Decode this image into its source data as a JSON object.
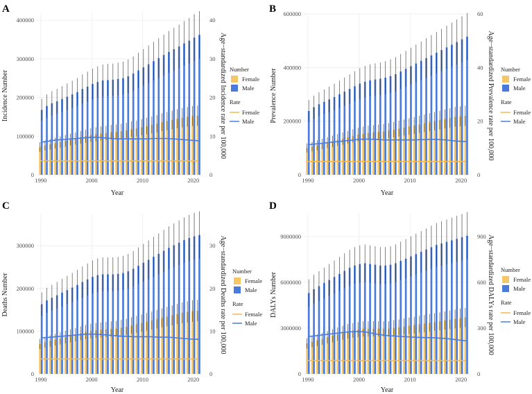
{
  "colors": {
    "female_bar": "#f6c767",
    "male_bar": "#4a7bdc",
    "female_rate": "#f2b950",
    "male_rate": "#4a7bdc",
    "error_bar": "#1f1f1f",
    "grid": "#ececec"
  },
  "legend": {
    "number_title": "Number",
    "rate_title": "Rate",
    "female": "Female",
    "male": "Male"
  },
  "chart_data": [
    {
      "type": "bar",
      "panel": "A",
      "xlabel": "Year",
      "ylabel": "Incidence Number",
      "y2label": "Age−standardized Incidence rate per 100,000",
      "x": [
        1990,
        1991,
        1992,
        1993,
        1994,
        1995,
        1996,
        1997,
        1998,
        1999,
        2000,
        2001,
        2002,
        2003,
        2004,
        2005,
        2006,
        2007,
        2008,
        2009,
        2010,
        2011,
        2012,
        2013,
        2014,
        2015,
        2016,
        2017,
        2018,
        2019,
        2020,
        2021
      ],
      "ylim": [
        0,
        420000
      ],
      "yticks": [
        0,
        100000,
        200000,
        300000,
        400000
      ],
      "y2lim": [
        0,
        42
      ],
      "y2ticks": [
        0,
        10,
        20,
        30,
        40
      ],
      "xticks": [
        1990,
        2000,
        2010,
        2020
      ],
      "series": [
        {
          "name": "Female number",
          "values": [
            72000,
            76000,
            79000,
            82000,
            85000,
            88000,
            91000,
            94000,
            97000,
            100000,
            103000,
            105000,
            107000,
            108000,
            110000,
            111000,
            113000,
            115000,
            118000,
            120000,
            123000,
            126000,
            129000,
            132000,
            136000,
            139000,
            142000,
            145000,
            148000,
            150000,
            152000,
            153000
          ]
        },
        {
          "name": "Male number",
          "values": [
            168000,
            178000,
            185000,
            190000,
            196000,
            202000,
            208000,
            214000,
            222000,
            228000,
            235000,
            240000,
            244000,
            245000,
            246000,
            248000,
            250000,
            255000,
            262000,
            270000,
            278000,
            286000,
            294000,
            302000,
            310000,
            318000,
            325000,
            332000,
            340000,
            347000,
            355000,
            362000
          ]
        },
        {
          "name": "Female rate",
          "values": [
            3.6,
            3.6,
            3.6,
            3.6,
            3.6,
            3.6,
            3.6,
            3.6,
            3.6,
            3.6,
            3.6,
            3.6,
            3.6,
            3.6,
            3.6,
            3.6,
            3.6,
            3.6,
            3.6,
            3.6,
            3.6,
            3.6,
            3.6,
            3.6,
            3.6,
            3.6,
            3.6,
            3.6,
            3.6,
            3.6,
            3.6,
            3.6
          ]
        },
        {
          "name": "Male rate",
          "values": [
            8.4,
            8.6,
            8.8,
            9.0,
            9.1,
            9.2,
            9.3,
            9.4,
            9.5,
            9.6,
            9.7,
            9.7,
            9.6,
            9.5,
            9.4,
            9.3,
            9.3,
            9.3,
            9.3,
            9.3,
            9.3,
            9.3,
            9.4,
            9.4,
            9.4,
            9.4,
            9.3,
            9.2,
            9.1,
            9.0,
            8.9,
            8.8
          ]
        }
      ]
    },
    {
      "type": "bar",
      "panel": "B",
      "xlabel": "Year",
      "ylabel": "Prevalence Number",
      "y2label": "Age−standardized Prevalence rate per 100,000",
      "x": [
        1990,
        1991,
        1992,
        1993,
        1994,
        1995,
        1996,
        1997,
        1998,
        1999,
        2000,
        2001,
        2002,
        2003,
        2004,
        2005,
        2006,
        2007,
        2008,
        2009,
        2010,
        2011,
        2012,
        2013,
        2014,
        2015,
        2016,
        2017,
        2018,
        2019,
        2020,
        2021
      ],
      "ylim": [
        0,
        600000
      ],
      "yticks": [
        0,
        200000,
        400000,
        600000
      ],
      "y2lim": [
        0,
        60
      ],
      "y2ticks": [
        0,
        20,
        40,
        60
      ],
      "xticks": [
        1990,
        2000,
        2010,
        2020
      ],
      "series": [
        {
          "name": "Female number",
          "values": [
            100000,
            105000,
            110000,
            115000,
            120000,
            125000,
            130000,
            135000,
            140000,
            145000,
            150000,
            153000,
            156000,
            158000,
            160000,
            162000,
            165000,
            168000,
            172000,
            176000,
            180000,
            184000,
            188000,
            192000,
            196000,
            200000,
            204000,
            208000,
            212000,
            216000,
            218000,
            220000
          ]
        },
        {
          "name": "Male number",
          "values": [
            238000,
            252000,
            263000,
            272000,
            281000,
            290000,
            300000,
            310000,
            320000,
            330000,
            340000,
            347000,
            352000,
            355000,
            358000,
            362000,
            368000,
            375000,
            385000,
            395000,
            405000,
            415000,
            425000,
            435000,
            445000,
            455000,
            465000,
            475000,
            485000,
            495000,
            505000,
            515000
          ]
        },
        {
          "name": "Female rate",
          "values": [
            5.0,
            5.0,
            5.0,
            5.0,
            5.0,
            5.0,
            5.0,
            5.0,
            5.0,
            5.0,
            5.0,
            5.0,
            5.0,
            5.0,
            5.0,
            5.0,
            5.0,
            5.0,
            5.0,
            5.0,
            5.0,
            5.0,
            5.0,
            5.0,
            5.0,
            5.0,
            5.0,
            5.0,
            5.0,
            5.0,
            5.0,
            5.0
          ]
        },
        {
          "name": "Male rate",
          "values": [
            11.2,
            11.4,
            11.6,
            11.8,
            12.0,
            12.2,
            12.4,
            12.6,
            12.8,
            13.0,
            13.2,
            13.3,
            13.3,
            13.2,
            13.1,
            13.0,
            13.0,
            13.0,
            13.0,
            13.0,
            13.0,
            13.0,
            13.1,
            13.1,
            13.2,
            13.2,
            13.1,
            13.0,
            12.8,
            12.6,
            12.5,
            12.4
          ]
        }
      ]
    },
    {
      "type": "bar",
      "panel": "C",
      "xlabel": "Year",
      "ylabel": "Deaths Number",
      "y2label": "Age−standardized Deaths rate per 100,000",
      "x": [
        1990,
        1991,
        1992,
        1993,
        1994,
        1995,
        1996,
        1997,
        1998,
        1999,
        2000,
        2001,
        2002,
        2003,
        2004,
        2005,
        2006,
        2007,
        2008,
        2009,
        2010,
        2011,
        2012,
        2013,
        2014,
        2015,
        2016,
        2017,
        2018,
        2019,
        2020,
        2021
      ],
      "ylim": [
        0,
        375000
      ],
      "yticks": [
        0,
        100000,
        200000,
        300000
      ],
      "y2lim": [
        0,
        37.5
      ],
      "y2ticks": [
        0,
        10,
        20,
        30
      ],
      "xticks": [
        1990,
        2000,
        2010,
        2020
      ],
      "series": [
        {
          "name": "Female number",
          "values": [
            70000,
            74000,
            77000,
            80000,
            83000,
            86000,
            89000,
            92000,
            95000,
            98000,
            100000,
            102000,
            103000,
            104000,
            105000,
            106000,
            108000,
            110000,
            113000,
            116000,
            119000,
            122000,
            125000,
            128000,
            131000,
            134000,
            137000,
            140000,
            143000,
            145000,
            147000,
            148000
          ]
        },
        {
          "name": "Male number",
          "values": [
            163000,
            172000,
            178000,
            184000,
            190000,
            196000,
            202000,
            208000,
            215000,
            221000,
            227000,
            231000,
            233000,
            233000,
            233000,
            234000,
            236000,
            240000,
            246000,
            253000,
            260000,
            267000,
            274000,
            281000,
            288000,
            295000,
            301000,
            307000,
            313000,
            318000,
            322000,
            325000
          ]
        },
        {
          "name": "Female rate",
          "values": [
            3.5,
            3.5,
            3.5,
            3.5,
            3.5,
            3.5,
            3.5,
            3.5,
            3.5,
            3.5,
            3.5,
            3.5,
            3.5,
            3.5,
            3.5,
            3.5,
            3.5,
            3.5,
            3.5,
            3.5,
            3.5,
            3.5,
            3.5,
            3.5,
            3.5,
            3.5,
            3.5,
            3.5,
            3.5,
            3.5,
            3.5,
            3.5
          ]
        },
        {
          "name": "Male rate",
          "values": [
            8.4,
            8.5,
            8.6,
            8.7,
            8.8,
            8.9,
            9.0,
            9.1,
            9.2,
            9.3,
            9.3,
            9.3,
            9.2,
            9.1,
            9.0,
            8.9,
            8.8,
            8.8,
            8.7,
            8.7,
            8.7,
            8.7,
            8.7,
            8.6,
            8.6,
            8.6,
            8.5,
            8.4,
            8.3,
            8.2,
            8.1,
            8.1
          ]
        }
      ]
    },
    {
      "type": "bar",
      "panel": "D",
      "xlabel": "Year",
      "ylabel": "DALYs Number",
      "y2label": "Age−standardized DALYs rate per 100,000",
      "x": [
        1990,
        1991,
        1992,
        1993,
        1994,
        1995,
        1996,
        1997,
        1998,
        1999,
        2000,
        2001,
        2002,
        2003,
        2004,
        2005,
        2006,
        2007,
        2008,
        2009,
        2010,
        2011,
        2012,
        2013,
        2014,
        2015,
        2016,
        2017,
        2018,
        2019,
        2020,
        2021
      ],
      "ylim": [
        0,
        10500000
      ],
      "yticks": [
        0,
        3000000,
        6000000,
        9000000
      ],
      "y2lim": [
        0,
        1050
      ],
      "y2ticks": [
        0,
        300,
        600,
        900
      ],
      "xticks": [
        1990,
        2000,
        2010,
        2020
      ],
      "series": [
        {
          "name": "Female number",
          "values": [
            2000000,
            2100000,
            2200000,
            2300000,
            2400000,
            2500000,
            2600000,
            2700000,
            2800000,
            2850000,
            2900000,
            2950000,
            2950000,
            2950000,
            2950000,
            2950000,
            2950000,
            3000000,
            3050000,
            3100000,
            3150000,
            3200000,
            3250000,
            3300000,
            3350000,
            3400000,
            3450000,
            3500000,
            3550000,
            3600000,
            3650000,
            3700000
          ]
        },
        {
          "name": "Male number",
          "values": [
            5300000,
            5550000,
            5750000,
            5950000,
            6150000,
            6350000,
            6550000,
            6750000,
            6950000,
            7100000,
            7200000,
            7250000,
            7200000,
            7150000,
            7100000,
            7100000,
            7150000,
            7250000,
            7400000,
            7550000,
            7700000,
            7850000,
            8000000,
            8150000,
            8300000,
            8450000,
            8550000,
            8650000,
            8750000,
            8850000,
            8950000,
            9050000
          ]
        },
        {
          "name": "Female rate",
          "values": [
            88,
            88,
            88,
            88,
            88,
            88,
            88,
            88,
            88,
            88,
            88,
            88,
            88,
            88,
            88,
            88,
            88,
            88,
            88,
            88,
            88,
            88,
            88,
            88,
            88,
            88,
            88,
            88,
            88,
            88,
            88,
            88
          ]
        },
        {
          "name": "Male rate",
          "values": [
            245,
            248,
            252,
            256,
            260,
            264,
            268,
            272,
            275,
            277,
            278,
            276,
            270,
            264,
            258,
            253,
            250,
            248,
            246,
            244,
            242,
            240,
            239,
            238,
            237,
            236,
            234,
            232,
            228,
            224,
            220,
            216
          ]
        }
      ]
    }
  ]
}
